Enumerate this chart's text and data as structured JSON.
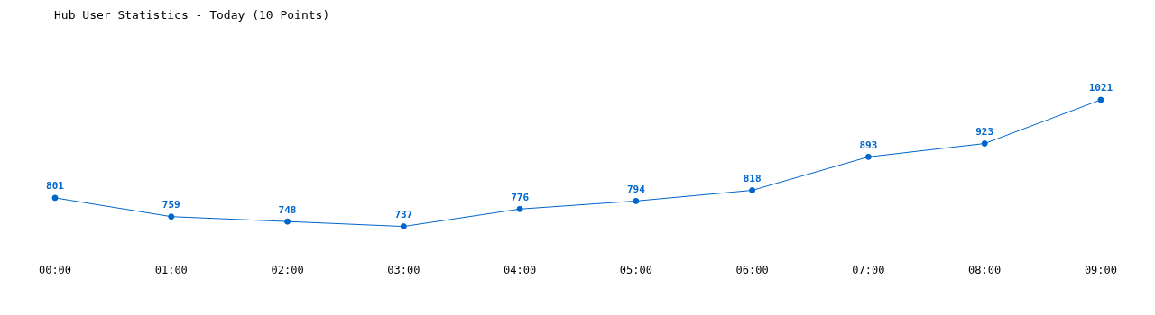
{
  "chart_data": {
    "type": "line",
    "title": "Hub User Statistics - Today (10 Points)",
    "categories": [
      "00:00",
      "01:00",
      "02:00",
      "03:00",
      "04:00",
      "05:00",
      "06:00",
      "07:00",
      "08:00",
      "09:00"
    ],
    "series": [
      {
        "color": "#0066cc",
        "values": [
          801,
          759,
          748,
          737,
          776,
          794,
          818,
          893,
          923,
          1021
        ]
      }
    ],
    "marker": "circle",
    "line_style": "solid",
    "data_labels": true,
    "grid": false,
    "legend": false,
    "tick_labels": "x"
  }
}
